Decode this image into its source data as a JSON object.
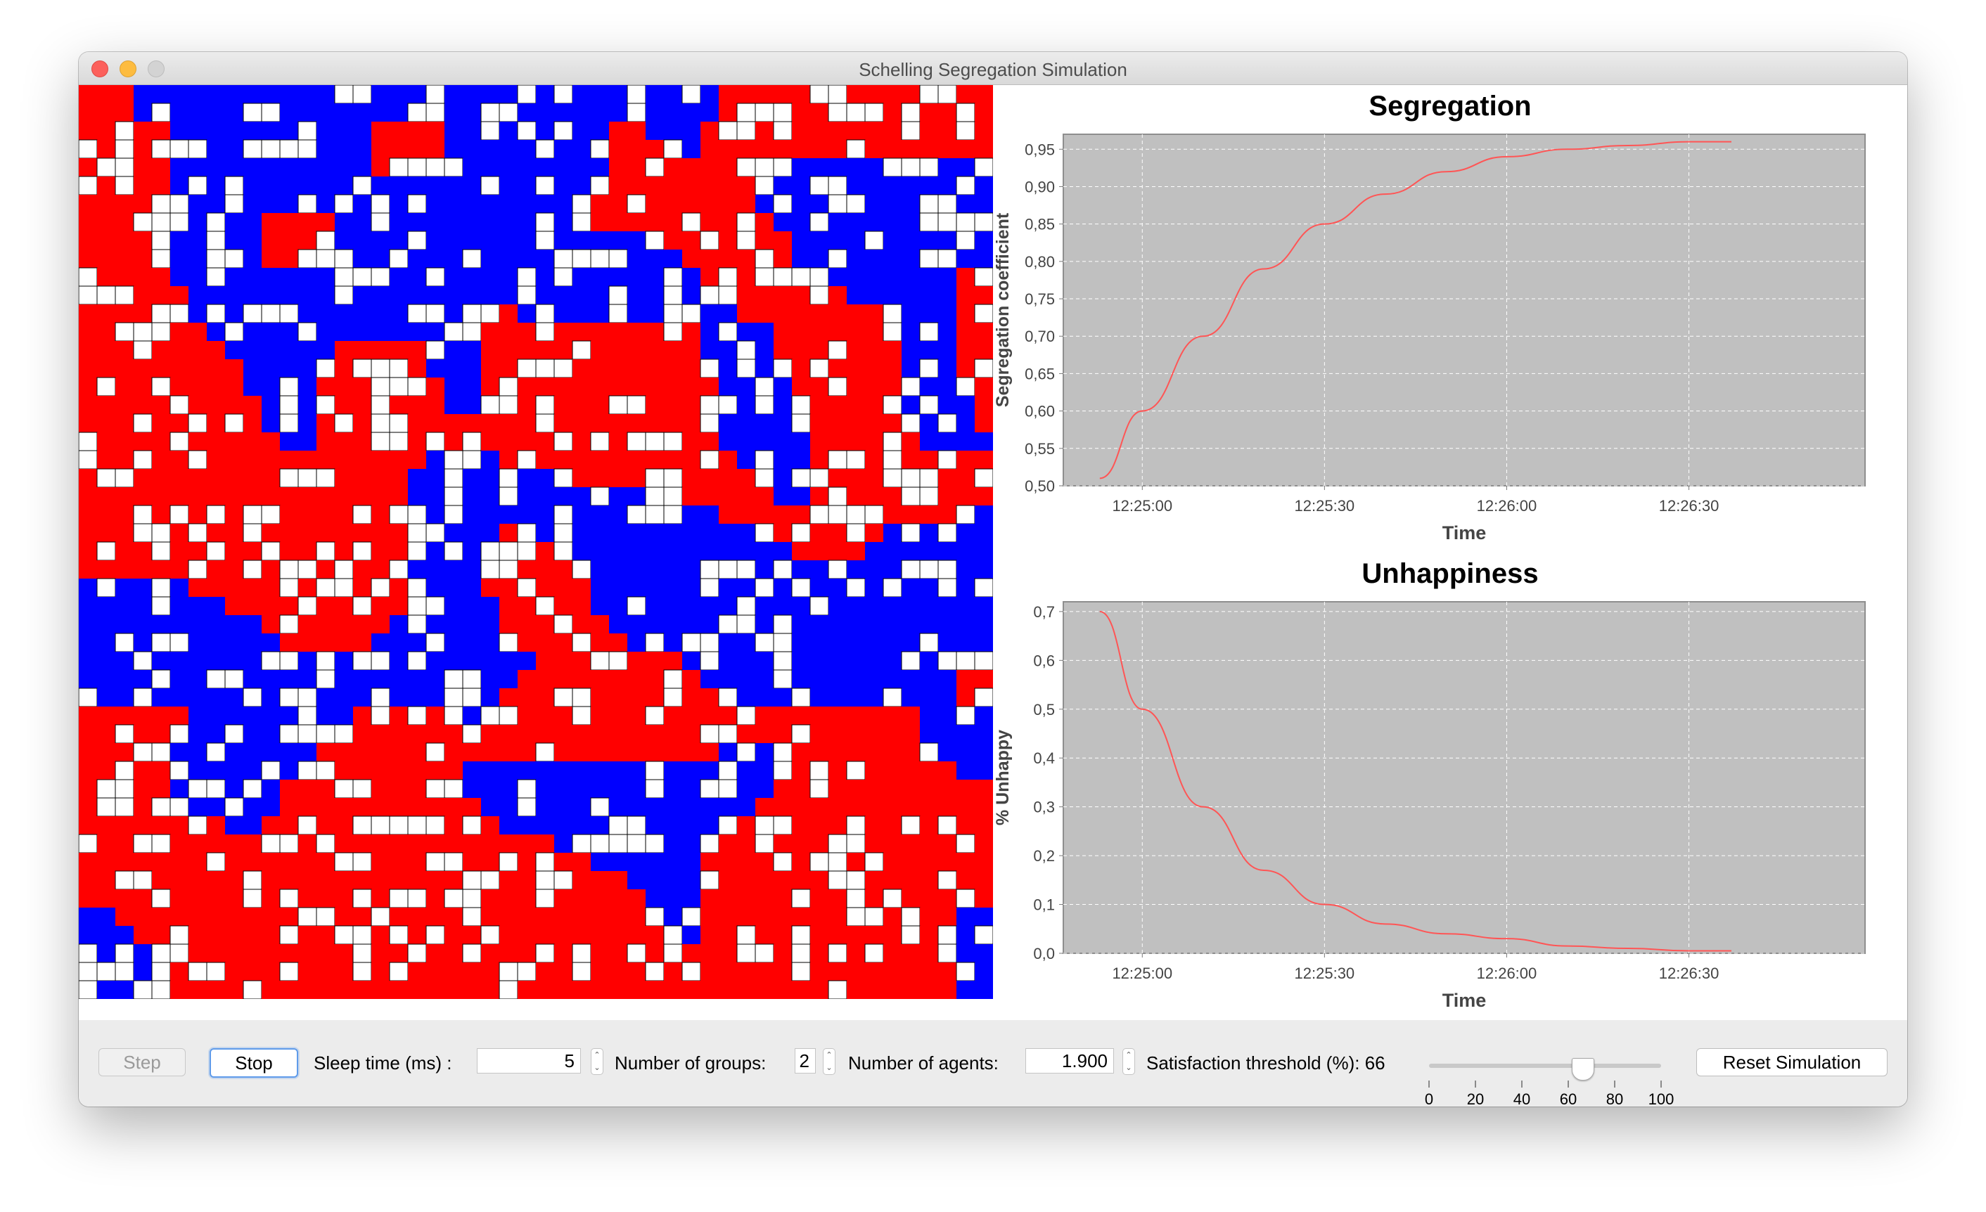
{
  "window": {
    "title": "Schelling Segregation Simulation"
  },
  "colors": {
    "group_a": "#ff0000",
    "group_b": "#0000ff",
    "empty": "#ffffff",
    "plot_bg": "#c0c0c0",
    "series": "#ff5555"
  },
  "grid": {
    "rows": 50,
    "cols": 50,
    "cells": [
      "RRRBBBBBBBBBBBBBBBBBBBBBBBBBBBBBBBBRRRRRRRRRRRRRRRR",
      "RRRBBBBBBBBBBBBBBBBBBBBBBBBBBBBBBBBRRRRRRRRRRRRRRRR",
      "RRRRRBBBBBBBBBBBRRRRBBBBBBBBBRRBBBRRRRRRRRRRRRRRRR",
      "RRRRRBBBBBBBBBBBRRRRBBBBBBBBBRRRBBRRRRRRRRRRRRRRRR",
      "RRRRRBBBBBBBBBBBRRRRRBBBBBBBBRRRRRRRRRBBBBBBBBBBBB",
      "RRRRRBBBBBBBBBBBBBBBBBBBBBBBRRRRRRRRRRBBBBBBBBBBBB",
      "RRRRRBBBBBBBBBBBBBBBBBBBBBBRRRRRRRRRRBBBBBBBBBBBBB",
      "RRRRRBBBBBRRRRBBBBBBBBBBBBBRRRRRRRRRRRBBBBBBBBBBBB",
      "RRRRRBBBBBRRRRBBBBBBBBBBBBBBBBBBRRRRRRRBBBBBBBBBBB",
      "RRRRRBBBBBRRRRBBBBBBBBBBBBBBBBBBBRRRRRRBBBBBBBBBBB",
      "RRRRRBBBBBBBBBBBBBBBBBBBBBBBBBBBBBRRRRRRRBBBBBBBRR",
      "RRRRRRBBBBBBBBBBBBBBBBBBBBBBBBBBBBRRRRRRRRBBBBBBRR",
      "RRRRRRBBBBBBBBBBBBBBBBRRBBBBBBBBBBBBRRRRRRRRBBBBRR",
      "RRRRRRRBBBBBBBBBBBBBBBRRRRRRRRRRRRBBBBRRRRRRBBBBRR",
      "RRRRRRRRBBBBBBRRRRRBBBRRRRRRRRRRRRBBBBRRRRRRRBBBRR",
      "RRRRRRRRRBBBBRRRRRRBBBRRRRRRRRRRRRBBBBRRRRRRRBBBRR",
      "RRRRRRRRRBBBBRRRRRRRBBRRRRRRRRRRRRRBBBBRRRRRRBBBBR",
      "RRRRRRRRRRBBBRRRRRRRBBRRRRRRRRRRRRRBBBBRRRRRRBBBBR",
      "RRRRRRRRRRBBBRRRRRRRRRRRRRRRRRRRRRRBBBBBRRRRRBBBBR",
      "RRRRRRRRRRRBBRRRRRRRRRRRRRRRRRRRRRRBBBBBRRRRRRBBBB",
      "RRRRRRRRRRRRRRRRRRRBBBBRRRRRRRRRRRRRBBBBRRRRRRRRRR",
      "RRRRRRRRRRRRRRRRRRBBBBBBBBRRRRRRRRRRRBBBRRRRRRRRRR",
      "RRRRRRRRRRRRRRRRRRBBBBBBBBBBBBBRRRRRRRBBRRRRRRRRRR",
      "RRRRRRRRRRRRRRRRRRBBBBBBBBBBBBBBBBBRRRRRRRRRRRRRBB",
      "RRRRRRRRRRRRRRRRRRBBBBBRRBBBBBBBBBBBBRRRRRRRBBBBBB",
      "RRRRRRRRRRRRRRRRRRBBBBRRRRBBBBBBBBBBBBBRRRRBBBBBBB",
      "RRRRRRRRRRRRRRRRRRBBBBRRRRRBBBBBBBBBBBBBBBBBBBBBBB",
      "BBBBBBRRRRRRRRRRRRBBBBRRRRRRBBBBBBBBBBBBBBBBBBBBBB",
      "BBBBBBBBRRRRRRRRRRRBBBBRRRRRBBBBBBBBBBBBBBBBBBBBBB",
      "BBBBBBBBBBRRRRRRRBBBBBBRRRRRRBBBBBBBBBBBBBBBBBBBBB",
      "BBBBBBBBBBBRRRRRBBBBBBBBRRRRRRBBBBBBBBBBBBBBBBBBBB",
      "BBBBBBBBBBBBBBBBBBBBBBBBBRRRRRRRRBBBBBBBBBBBBBBBBB",
      "BBBBBBBBBBBBBBBBBBBBBBBBRRRRRRRRRRBBBBBBBBBBBBBBRR",
      "BBBBBBBBBBBBBBBBBBBBBBBRRRRRRRRRRRRRBBBBBBBBBBBBRR",
      "RRRRRRBBBBBBBBBRRRRRBBRRRRRRRRRRRRRRRRRRRRRRRRBBBB",
      "RRRRRBBBBBBBBBRRRRRRRRRRRRRRRRRRRRRRRRRRRRRRRRBBBB",
      "RRRRRBBBBBBBBRRRRRRRRRRRRRRRRRRRRRRBBBBRRRRRRRBBBB",
      "RRRRRBBBBBBBBRRRRRRRRBBBBBBBBBBBBBBBBBBRRRRRRRRRBB",
      "RRRRRBBBBBBRRRRRRRRRRBBBBBBBBBBBBBBBBBRRRRRRRRRRRR",
      "RRRRRRBBBBBRRRRRRRRRRRBBBBBBBBBBBBBBBRRRRRRRRRRRRR",
      "RRRRRRRRBBRRRRRRRRRRRRRBBBBBBBBBBBBBRRRRRRRRRRRRRR",
      "RRRRRRRRRRRRRRRRRRRRRRRRRRBBBBBBBBBRRRRRRRRRRRRRRR",
      "RRRRRRRRRRRRRRRRRRRRRRRRRRRRBBBBBBRRRRRRRRRRRRRRRR",
      "RRRRRRRRRRRRRRRRRRRRRRRRRRRRRRBBBBRRRRRRRRRRRRRRRR",
      "RRRRRRRRRRRRRRRRRRRRRRRRRRRRRRRBBBRRRRRRRRRRRRRRRR",
      "BBRRRRRRRRRRRRRRRRRRRRRRRRRRRRRRBBRRRRRRRRRRRRRRBB",
      "BBBRRRRRRRRRRRRRRRRRRRRRRRRRRRRRRBRRRRRRRRRRRRRRBB",
      "BBBBRRRRRRRRRRRRRRRRRRRRRRRRRRRRRRRRRRRRRRRRRRRRBB",
      "BBBBRRRRRRRRRRRRRRRRRRRRRRRRRRRRRRRRRRRRRRRRRRRRBB",
      "BBBBBRRRRRRRRRRRRRRRRRRRRRRRRRRRRRRRRRRRRRRRRRRRBB"
    ],
    "empty_fraction": 0.24
  },
  "charts": {
    "segregation": {
      "title": "Segregation",
      "xlabel": "Time",
      "ylabel": "Segregation coefficient",
      "yticks": [
        "0,50",
        "0,55",
        "0,60",
        "0,65",
        "0,70",
        "0,75",
        "0,80",
        "0,85",
        "0,90",
        "0,95"
      ],
      "xticks": [
        "12:25:00",
        "12:25:30",
        "12:26:00",
        "12:26:30"
      ]
    },
    "unhappiness": {
      "title": "Unhappiness",
      "xlabel": "Time",
      "ylabel": "% Unhappy",
      "yticks": [
        "0,0",
        "0,1",
        "0,2",
        "0,3",
        "0,4",
        "0,5",
        "0,6",
        "0,7"
      ],
      "xticks": [
        "12:25:00",
        "12:25:30",
        "12:26:00",
        "12:26:30"
      ]
    }
  },
  "chart_data": [
    {
      "type": "line",
      "title": "Segregation",
      "xlabel": "Time",
      "ylabel": "Segregation coefficient",
      "x": [
        "12:24:53",
        "12:25:00",
        "12:25:10",
        "12:25:20",
        "12:25:30",
        "12:25:40",
        "12:25:50",
        "12:26:00",
        "12:26:10",
        "12:26:20",
        "12:26:30",
        "12:26:37"
      ],
      "series": [
        {
          "values": [
            0.51,
            0.6,
            0.7,
            0.79,
            0.85,
            0.89,
            0.92,
            0.94,
            0.95,
            0.955,
            0.96,
            0.96
          ]
        }
      ],
      "ylim": [
        0.5,
        0.97
      ],
      "grid": true
    },
    {
      "type": "line",
      "title": "Unhappiness",
      "xlabel": "Time",
      "ylabel": "% Unhappy",
      "x": [
        "12:24:53",
        "12:25:00",
        "12:25:10",
        "12:25:20",
        "12:25:30",
        "12:25:40",
        "12:25:50",
        "12:26:00",
        "12:26:10",
        "12:26:20",
        "12:26:30",
        "12:26:37"
      ],
      "series": [
        {
          "values": [
            0.7,
            0.5,
            0.3,
            0.17,
            0.1,
            0.06,
            0.04,
            0.03,
            0.015,
            0.01,
            0.005,
            0.005
          ]
        }
      ],
      "ylim": [
        0.0,
        0.72
      ],
      "grid": true
    }
  ],
  "controls": {
    "step_label": "Step",
    "stop_label": "Stop",
    "sleep_label": "Sleep time (ms) :",
    "sleep_value": "5",
    "groups_label": "Number of groups:",
    "groups_value": "2",
    "agents_label": "Number of agents:",
    "agents_value": "1.900",
    "threshold_label": "Satisfaction threshold (%): 66",
    "threshold_value": 66,
    "slider_ticks": [
      "0",
      "20",
      "40",
      "60",
      "80",
      "100"
    ],
    "reset_label": "Reset Simulation"
  }
}
